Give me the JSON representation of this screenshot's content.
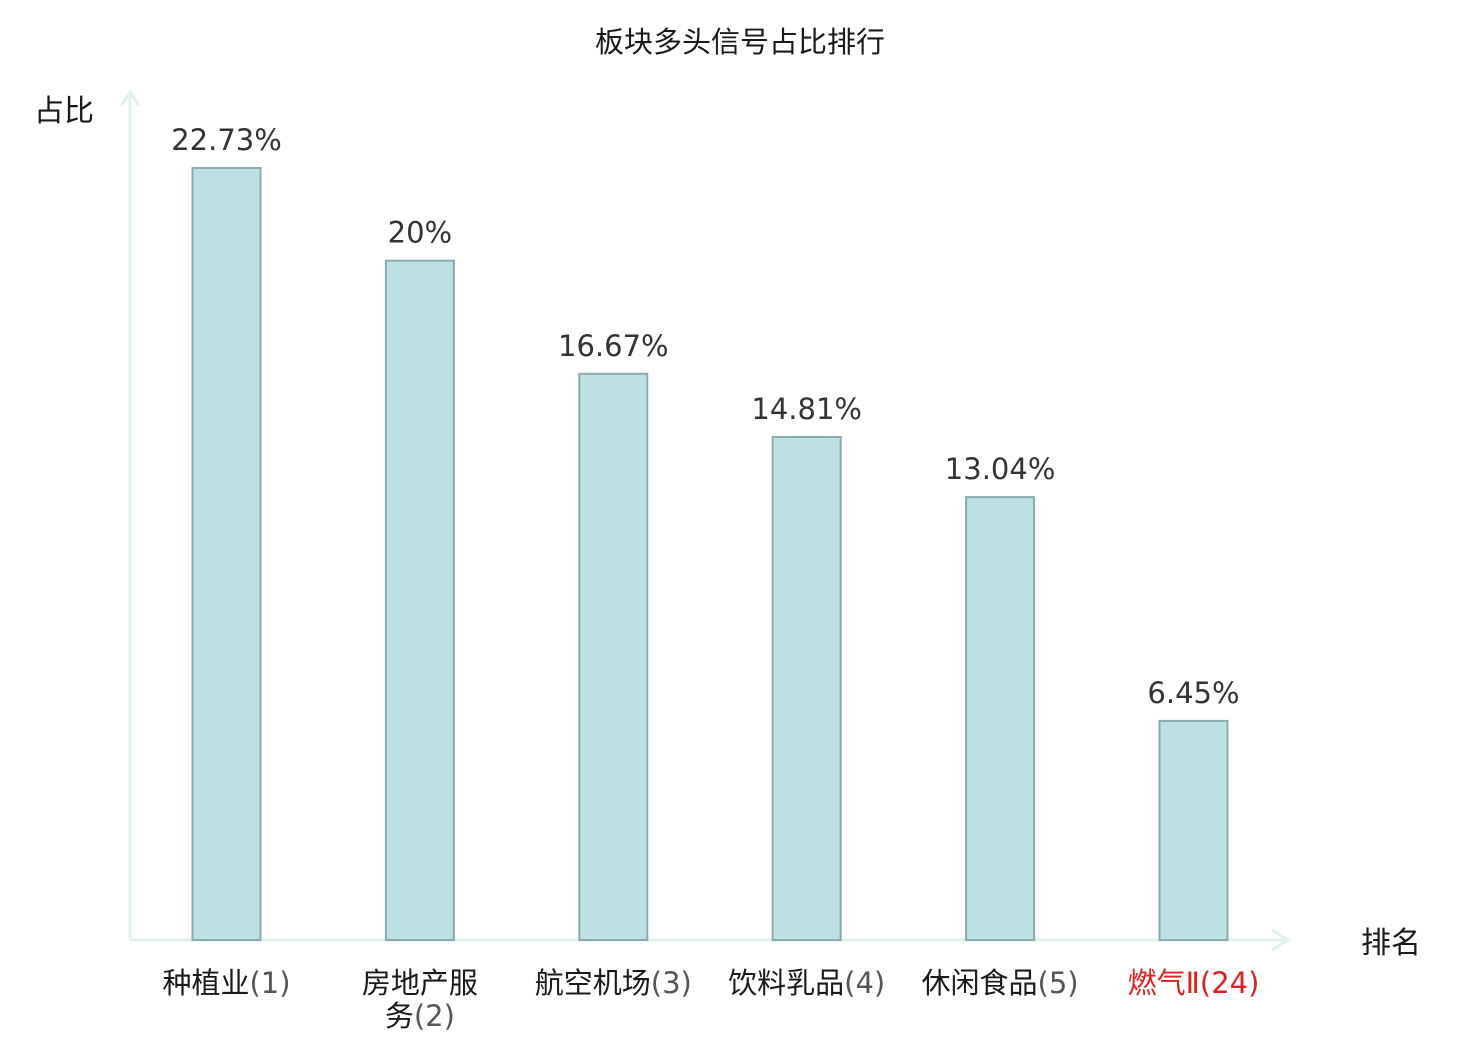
{
  "chart_data": {
    "type": "bar",
    "title": "板块多头信号占比排行",
    "xlabel": "排名",
    "ylabel": "占比",
    "ylim": [
      0,
      25
    ],
    "grid": false,
    "categories": [
      {
        "name": "种植业",
        "rank": "(1)",
        "highlight": false
      },
      {
        "name": "房地产服务",
        "rank": "(2)",
        "highlight": false
      },
      {
        "name": "航空机场",
        "rank": "(3)",
        "highlight": false
      },
      {
        "name": "饮料乳品",
        "rank": "(4)",
        "highlight": false
      },
      {
        "name": "休闲食品",
        "rank": "(5)",
        "highlight": false
      },
      {
        "name": "燃气Ⅱ",
        "rank": "(24)",
        "highlight": true
      }
    ],
    "values": [
      22.73,
      20,
      16.67,
      14.81,
      13.04,
      6.45
    ],
    "value_labels": [
      "22.73%",
      "20%",
      "16.67%",
      "14.81%",
      "13.04%",
      "6.45%"
    ],
    "colors": {
      "bar_fill": "#bde0e3",
      "bar_stroke": "#8aabae",
      "axis": "#e0f2ef",
      "highlight_text": "#e02020"
    }
  }
}
